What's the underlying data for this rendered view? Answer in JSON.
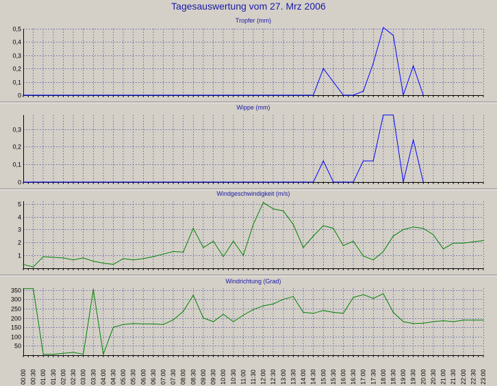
{
  "page": {
    "title": "Tagesauswertung vom 27. Mrz 2006"
  },
  "colors": {
    "background": "#D4D0C8",
    "title": "#1a1aa6",
    "rain_series": "#0000ff",
    "wind_series": "#008000",
    "grid": "#7b7bb5"
  },
  "x_tick_labels": [
    "00:00",
    "00:30",
    "01:00",
    "01:30",
    "02:00",
    "02:30",
    "03:00",
    "03:30",
    "04:00",
    "04:30",
    "05:00",
    "05:30",
    "06:00",
    "06:30",
    "07:00",
    "07:30",
    "08:00",
    "08:30",
    "09:00",
    "09:30",
    "10:00",
    "10:30",
    "11:00",
    "11:30",
    "12:00",
    "12:30",
    "13:00",
    "13:30",
    "14:00",
    "14:30",
    "15:00",
    "15:30",
    "16:00",
    "16:30",
    "17:00",
    "17:30",
    "18:00",
    "18:30",
    "19:00",
    "19:30",
    "20:00",
    "20:30",
    "21:00",
    "21:30",
    "22:00",
    "22:30",
    "23:00"
  ],
  "chart_data": [
    {
      "type": "line",
      "title": "Tropfer (mm)",
      "color": "#0000ff",
      "yticks": [
        "0",
        "0,1",
        "0,2",
        "0,3",
        "0,4",
        "0,5"
      ],
      "ylim": [
        0,
        0.5
      ],
      "grid": true,
      "x": [
        "00:00",
        "00:30",
        "01:00",
        "01:30",
        "02:00",
        "02:30",
        "03:00",
        "03:30",
        "04:00",
        "04:30",
        "05:00",
        "05:30",
        "06:00",
        "06:30",
        "07:00",
        "07:30",
        "08:00",
        "08:30",
        "09:00",
        "09:30",
        "10:00",
        "10:30",
        "11:00",
        "11:30",
        "12:00",
        "12:30",
        "13:00",
        "13:30",
        "14:00",
        "14:30",
        "15:00",
        "15:30",
        "16:00",
        "16:30",
        "17:00",
        "17:30",
        "18:00",
        "18:30",
        "19:00",
        "19:30",
        "20:00"
      ],
      "values": [
        0,
        0,
        0,
        0,
        0,
        0,
        0,
        0,
        0,
        0,
        0,
        0,
        0,
        0,
        0,
        0,
        0,
        0,
        0,
        0,
        0,
        0,
        0,
        0,
        0,
        0,
        0,
        0,
        0,
        0,
        0.2,
        0.1,
        0,
        0,
        0.03,
        0.24,
        0.51,
        0.45,
        0,
        0.22,
        0
      ]
    },
    {
      "type": "line",
      "title": "Wippe (mm)",
      "color": "#0000ff",
      "yticks": [
        "0",
        "0,1",
        "0,2",
        "0,3"
      ],
      "ylim": [
        0,
        0.38
      ],
      "grid": true,
      "x": [
        "00:00",
        "00:30",
        "01:00",
        "01:30",
        "02:00",
        "02:30",
        "03:00",
        "03:30",
        "04:00",
        "04:30",
        "05:00",
        "05:30",
        "06:00",
        "06:30",
        "07:00",
        "07:30",
        "08:00",
        "08:30",
        "09:00",
        "09:30",
        "10:00",
        "10:30",
        "11:00",
        "11:30",
        "12:00",
        "12:30",
        "13:00",
        "13:30",
        "14:00",
        "14:30",
        "15:00",
        "15:30",
        "16:00",
        "16:30",
        "17:00",
        "17:30",
        "18:00",
        "18:30",
        "19:00",
        "19:30",
        "20:00"
      ],
      "values": [
        0,
        0,
        0,
        0,
        0,
        0,
        0,
        0,
        0,
        0,
        0,
        0,
        0,
        0,
        0,
        0,
        0,
        0,
        0,
        0,
        0,
        0,
        0,
        0,
        0,
        0,
        0,
        0,
        0,
        0,
        0.12,
        0,
        0,
        0,
        0.12,
        0.12,
        0.38,
        0.38,
        0,
        0.24,
        0
      ]
    },
    {
      "type": "line",
      "title": "Windgeschwindigkeit (m/s)",
      "color": "#008000",
      "yticks": [
        "1",
        "2",
        "3",
        "4",
        "5"
      ],
      "ylim": [
        0,
        5.2
      ],
      "grid": true,
      "x": [
        "00:00",
        "00:30",
        "01:00",
        "01:30",
        "02:00",
        "02:30",
        "03:00",
        "03:30",
        "04:00",
        "04:30",
        "05:00",
        "05:30",
        "06:00",
        "06:30",
        "07:00",
        "07:30",
        "08:00",
        "08:30",
        "09:00",
        "09:30",
        "10:00",
        "10:30",
        "11:00",
        "11:30",
        "12:00",
        "12:30",
        "13:00",
        "13:30",
        "14:00",
        "14:30",
        "15:00",
        "15:30",
        "16:00",
        "16:30",
        "17:00",
        "17:30",
        "18:00",
        "18:30",
        "19:00",
        "19:30",
        "20:00",
        "20:30",
        "21:00",
        "21:30",
        "22:00",
        "22:30",
        "23:00"
      ],
      "values": [
        0.3,
        0.1,
        0.9,
        0.85,
        0.8,
        0.65,
        0.8,
        0.55,
        0.4,
        0.3,
        0.75,
        0.65,
        0.75,
        0.9,
        1.1,
        1.3,
        1.25,
        3.1,
        1.6,
        2.1,
        0.9,
        2.1,
        1.0,
        3.4,
        5.1,
        4.6,
        4.45,
        3.4,
        1.6,
        2.5,
        3.3,
        3.1,
        1.75,
        2.1,
        0.95,
        0.65,
        1.3,
        2.5,
        3.0,
        3.2,
        3.1,
        2.6,
        1.5,
        1.95,
        1.95,
        2.05,
        2.15
      ]
    },
    {
      "type": "line",
      "title": "Windrichtung (Grad)",
      "color": "#008000",
      "yticks": [
        "50",
        "100",
        "150",
        "200",
        "250",
        "300",
        "350"
      ],
      "ylim": [
        0,
        360
      ],
      "grid": true,
      "x": [
        "00:00",
        "00:30",
        "01:00",
        "01:30",
        "02:00",
        "02:30",
        "03:00",
        "03:30",
        "04:00",
        "04:30",
        "05:00",
        "05:30",
        "06:00",
        "06:30",
        "07:00",
        "07:30",
        "08:00",
        "08:30",
        "09:00",
        "09:30",
        "10:00",
        "10:30",
        "11:00",
        "11:30",
        "12:00",
        "12:30",
        "13:00",
        "13:30",
        "14:00",
        "14:30",
        "15:00",
        "15:30",
        "16:00",
        "16:30",
        "17:00",
        "17:30",
        "18:00",
        "18:30",
        "19:00",
        "19:30",
        "20:00",
        "20:30",
        "21:00",
        "21:30",
        "22:00",
        "22:30",
        "23:00"
      ],
      "values": [
        357,
        357,
        5,
        5,
        10,
        15,
        5,
        352,
        5,
        150,
        165,
        170,
        168,
        168,
        165,
        190,
        235,
        322,
        200,
        180,
        220,
        180,
        215,
        245,
        265,
        275,
        300,
        315,
        230,
        225,
        240,
        230,
        225,
        310,
        325,
        305,
        330,
        230,
        180,
        170,
        172,
        180,
        185,
        180,
        188,
        188,
        188
      ]
    }
  ]
}
